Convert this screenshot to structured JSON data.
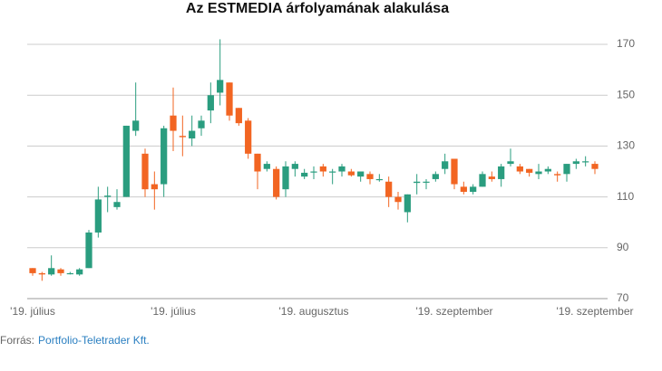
{
  "chart_data": {
    "type": "candlestick",
    "title": "Az ESTMEDIA árfolyamának alakulása",
    "source_label": "Forrás:",
    "source": "Portfolio-Teletrader Kft.",
    "categories": [
      "'19. július",
      null,
      null,
      null,
      null,
      null,
      null,
      null,
      null,
      null,
      null,
      null,
      null,
      null,
      null,
      "'19. július",
      null,
      null,
      null,
      null,
      null,
      null,
      null,
      null,
      null,
      null,
      null,
      null,
      null,
      null,
      "'19. augusztus",
      null,
      null,
      null,
      null,
      null,
      null,
      null,
      null,
      null,
      null,
      null,
      null,
      null,
      null,
      "'19. szeptember",
      null,
      null,
      null,
      null,
      null,
      null,
      null,
      null,
      null,
      null,
      null,
      null,
      null,
      null,
      "'19. szeptember"
    ],
    "open": [
      82,
      80,
      79.5,
      81.5,
      80,
      79.5,
      82,
      96,
      110,
      106,
      110,
      136,
      127,
      115,
      115,
      142,
      134,
      133,
      137,
      144,
      151,
      155,
      145,
      140,
      127,
      121,
      121,
      113,
      121,
      118,
      120,
      122,
      120,
      120,
      120,
      118,
      119,
      117,
      116,
      110,
      104,
      115.5,
      116,
      117,
      121,
      125,
      114,
      112,
      114,
      118,
      117,
      123,
      122,
      121,
      119,
      120,
      119,
      119,
      123,
      124,
      123
    ],
    "high": [
      82,
      80.5,
      87,
      82,
      80.5,
      82,
      97,
      114,
      114,
      113,
      138,
      155,
      129,
      120,
      138,
      153,
      142,
      142,
      142,
      155,
      172,
      155,
      145,
      141,
      127,
      124,
      122,
      124,
      124,
      121,
      122,
      123,
      121,
      123,
      121,
      120,
      120,
      119,
      118,
      112,
      111,
      119,
      117,
      120,
      127,
      125,
      116,
      115,
      120,
      120,
      123,
      129,
      123,
      121,
      123,
      122,
      120,
      123,
      125,
      126,
      124
    ],
    "low": [
      79,
      77,
      79,
      79,
      79.5,
      79,
      82,
      94,
      104,
      105,
      110,
      134,
      110,
      105,
      110,
      128,
      126,
      130,
      134,
      139,
      146,
      140,
      138,
      125,
      113,
      120,
      109,
      110,
      118,
      117,
      117,
      118,
      115,
      118,
      118,
      116,
      115,
      116,
      106,
      105,
      100,
      111,
      113,
      116,
      119,
      113,
      111,
      111,
      114,
      116,
      114,
      122,
      119,
      118,
      117,
      119,
      116,
      116,
      121,
      122,
      119
    ],
    "close": [
      80,
      79.5,
      82,
      80,
      80,
      81.5,
      96,
      109,
      110.5,
      108,
      138,
      140,
      113,
      113,
      137,
      136,
      133.5,
      136,
      140,
      150,
      156,
      142,
      139,
      127,
      120,
      123,
      110,
      122,
      123,
      119.5,
      120,
      120,
      120,
      122,
      118.5,
      120,
      117,
      117,
      110,
      108,
      111,
      116,
      116,
      119,
      124,
      115,
      112,
      114,
      119,
      117,
      122,
      124,
      120,
      119.5,
      120,
      121,
      118.5,
      123,
      124,
      124,
      121
    ],
    "up_color": "#2a9d7f",
    "down_color": "#f26522",
    "ylim": [
      70,
      173
    ],
    "yticks": [
      70,
      90,
      110,
      130,
      150,
      170
    ],
    "grid": true
  }
}
